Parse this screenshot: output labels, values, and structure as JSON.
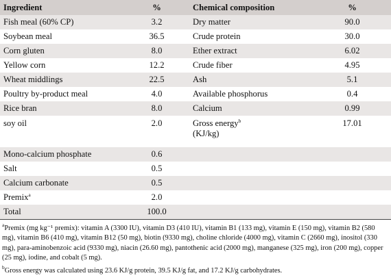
{
  "headers": {
    "ingredient": "Ingredient",
    "pct1": "%",
    "chemical": "Chemical composition",
    "pct2": "%"
  },
  "rows": [
    {
      "ingredient": "Fish meal (60% CP)",
      "pct": "3.2",
      "chemical": "Dry matter",
      "chem_pct": "90.0"
    },
    {
      "ingredient": "Soybean meal",
      "pct": "36.5",
      "chemical": "Crude protein",
      "chem_pct": "30.0"
    },
    {
      "ingredient": "Corn gluten",
      "pct": "8.0",
      "chemical": "Ether extract",
      "chem_pct": "6.02"
    },
    {
      "ingredient": "Yellow corn",
      "pct": "12.2",
      "chemical": "Crude fiber",
      "chem_pct": "4.95"
    },
    {
      "ingredient": "Wheat middlings",
      "pct": "22.5",
      "chemical": "Ash",
      "chem_pct": "5.1"
    },
    {
      "ingredient": "Poultry by-product meal",
      "pct": "4.0",
      "chemical": "Available phosphorus",
      "chem_pct": "0.4"
    },
    {
      "ingredient": "Rice bran",
      "pct": "8.0",
      "chemical": "Calcium",
      "chem_pct": "0.99"
    },
    {
      "ingredient": "soy oil",
      "pct": "2.0",
      "chemical": "Gross energy",
      "chemical_sup": "b",
      "chemical_line2": "(KJ/kg)",
      "chem_pct": "17.01"
    },
    {
      "ingredient": "Mono-calcium phosphate",
      "pct": "0.6",
      "chemical": "",
      "chem_pct": ""
    },
    {
      "ingredient": "Salt",
      "pct": "0.5",
      "chemical": "",
      "chem_pct": ""
    },
    {
      "ingredient": "Calcium carbonate",
      "pct": "0.5",
      "chemical": "",
      "chem_pct": ""
    },
    {
      "ingredient": "Premix",
      "ingredient_sup": "a",
      "pct": "2.0",
      "chemical": "",
      "chem_pct": ""
    },
    {
      "ingredient": "Total",
      "pct": "100.0",
      "chemical": "",
      "chem_pct": ""
    }
  ],
  "footnotes": {
    "a_marker": "a",
    "a_text": "Premix (mg kg⁻¹ premix): vitamin A (3300 IU), vitamin D3 (410 IU), vitamin B1 (133 mg), vitamin E (150 mg), vitamin B2 (580 mg), vitamin B6 (410 mg), vitamin B12 (50 mg), biotin (9330 mg), choline chloride (4000 mg), vitamin C (2660 mg), inositol (330 mg), para-aminobenzoic acid (9330 mg), niacin (26.60 mg), pantothenic acid (2000 mg), manganese (325 mg), iron (200 mg), copper (25 mg), iodine, and cobalt (5 mg).",
    "b_marker": "b",
    "b_text": "Gross energy was calculated using 23.6 KJ/g protein, 39.5 KJ/g fat, and 17.2 KJ/g carbohydrates."
  }
}
